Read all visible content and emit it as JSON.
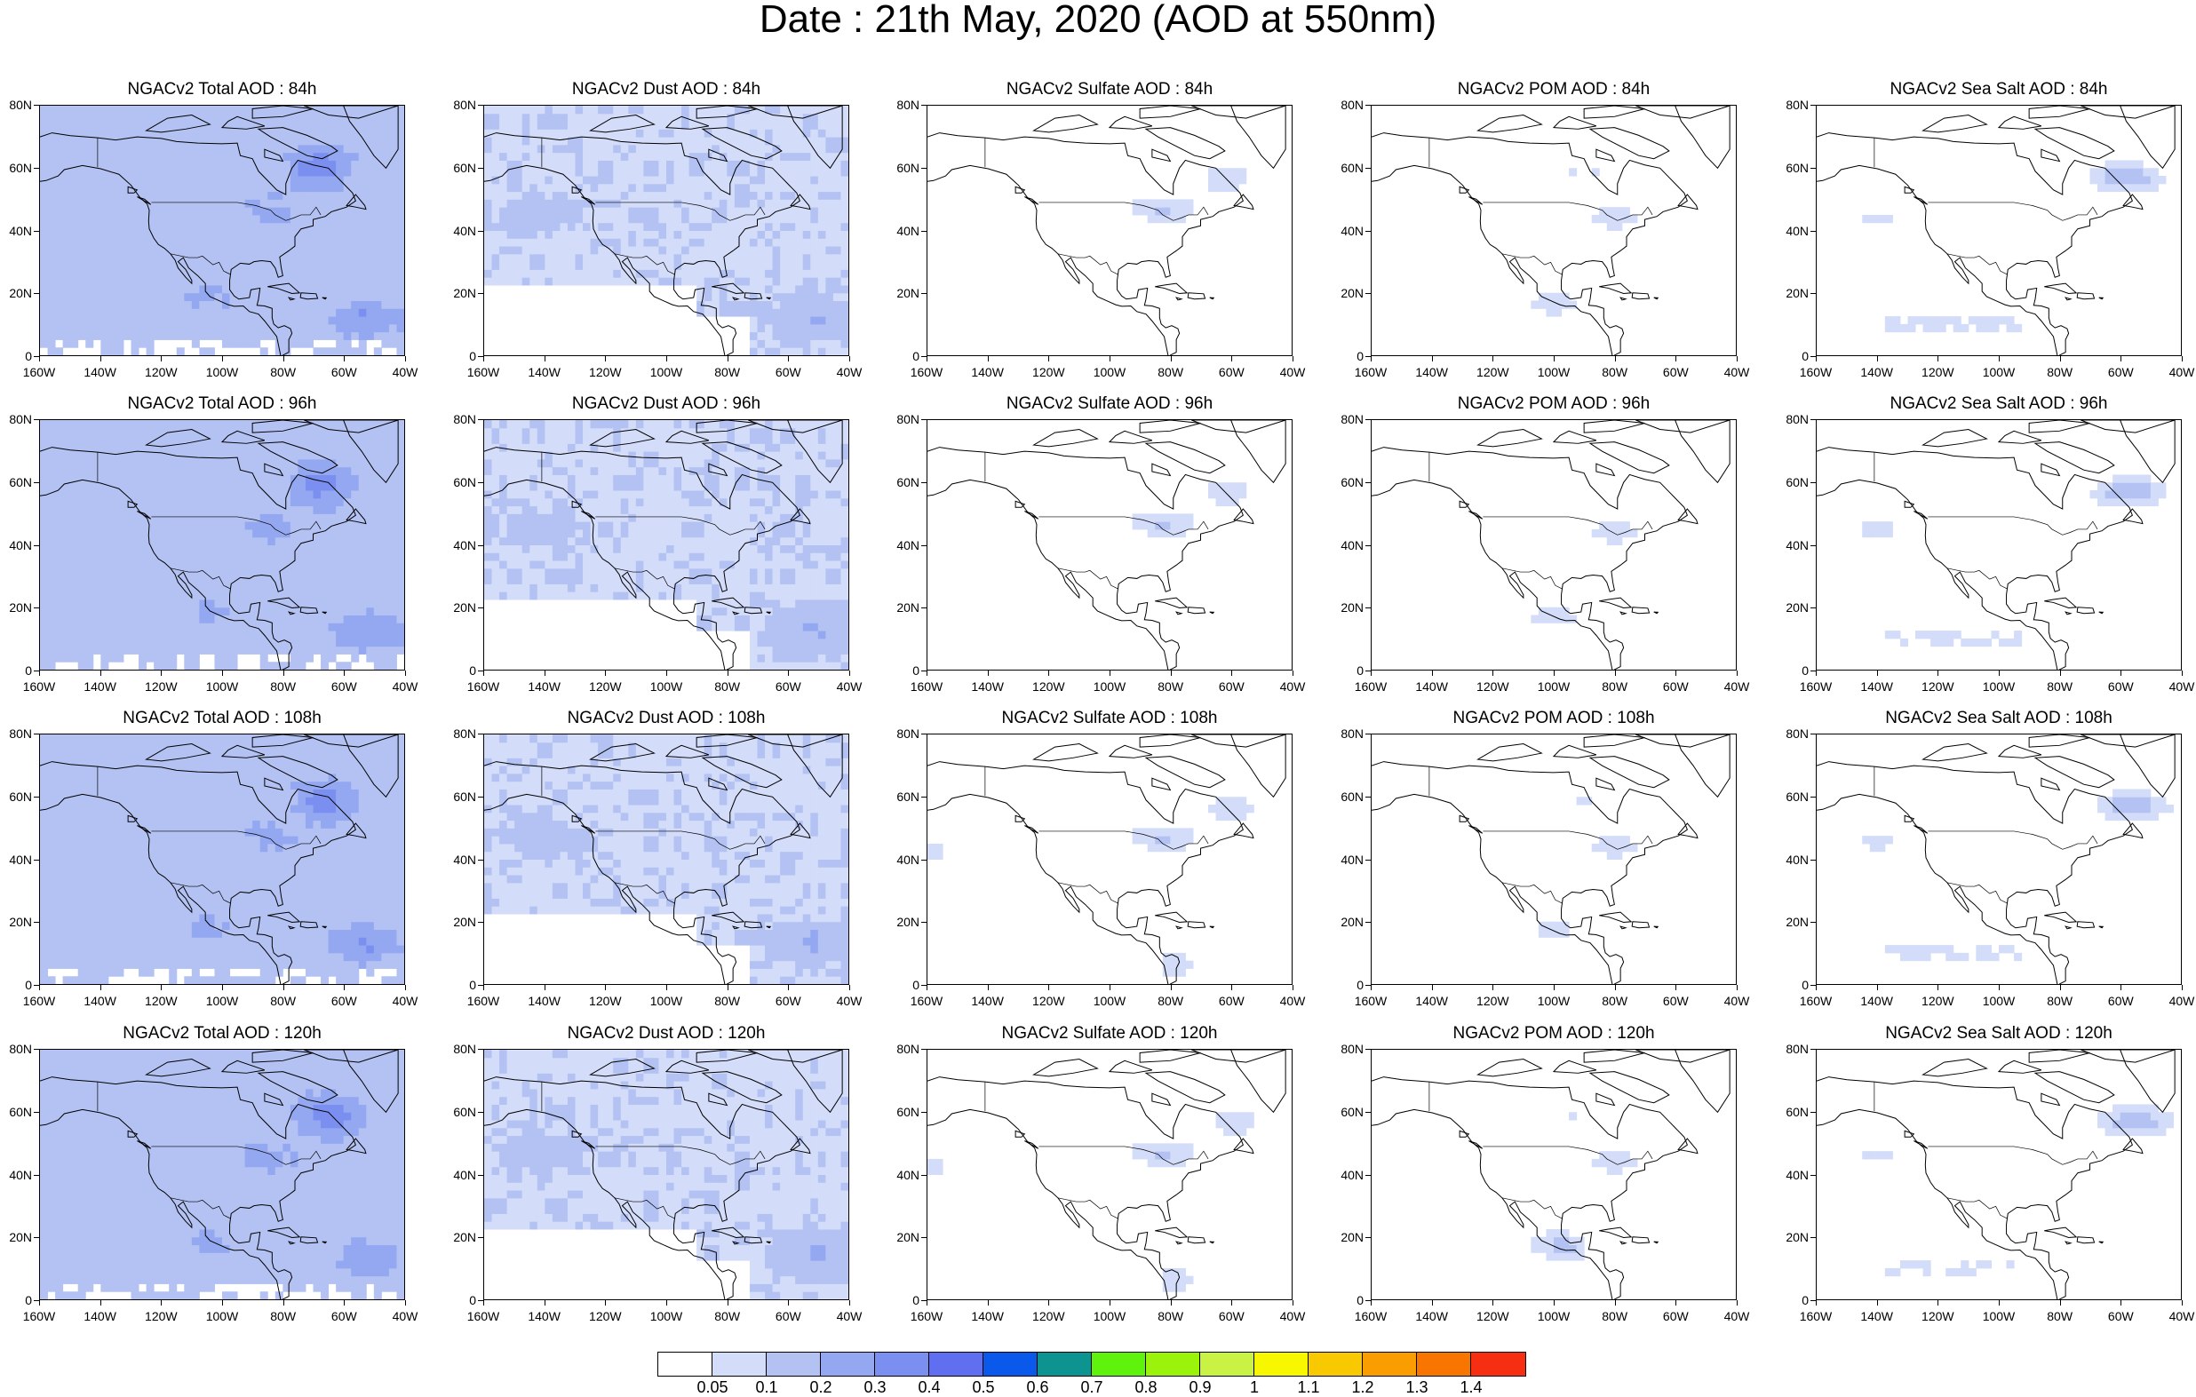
{
  "title": "Date : 21th May, 2020 (AOD at 550nm)",
  "columns": [
    {
      "species": "total",
      "titles": [
        "NGACv2 Total AOD : 84h",
        "NGACv2 Total AOD : 96h",
        "NGACv2 Total AOD : 108h",
        "NGACv2 Total AOD : 120h"
      ]
    },
    {
      "species": "dust",
      "titles": [
        "NGACv2 Dust AOD : 84h",
        "NGACv2 Dust AOD : 96h",
        "NGACv2 Dust AOD : 108h",
        "NGACv2 Dust AOD : 120h"
      ]
    },
    {
      "species": "sulfate",
      "titles": [
        "NGACv2 Sulfate AOD : 84h",
        "NGACv2 Sulfate AOD : 96h",
        "NGACv2 Sulfate AOD : 108h",
        "NGACv2 Sulfate AOD : 120h"
      ]
    },
    {
      "species": "pom",
      "titles": [
        "NGACv2 POM AOD : 84h",
        "NGACv2 POM AOD : 96h",
        "NGACv2 POM AOD : 108h",
        "NGACv2 POM AOD : 120h"
      ]
    },
    {
      "species": "seasalt",
      "titles": [
        "NGACv2 Sea Salt AOD : 84h",
        "NGACv2 Sea Salt AOD : 96h",
        "NGACv2 Sea Salt AOD : 108h",
        "NGACv2 Sea Salt  AOD : 120h"
      ]
    }
  ],
  "y_ticks": [
    "80N",
    "60N",
    "40N",
    "20N",
    "0"
  ],
  "x_ticks": [
    "160W",
    "140W",
    "120W",
    "100W",
    "80W",
    "60W",
    "40W"
  ],
  "colorbar": {
    "colors": [
      "#ffffff",
      "#d3dcf8",
      "#b3c2f3",
      "#94a8f1",
      "#7b8ff0",
      "#5f6ff0",
      "#0a59ea",
      "#0e9490",
      "#5ef20c",
      "#9bf30b",
      "#c9f245",
      "#f7f700",
      "#f8c800",
      "#f99d00",
      "#f87600",
      "#f72f12"
    ],
    "labels": [
      "0.05",
      "0.1",
      "0.2",
      "0.3",
      "0.4",
      "0.5",
      "0.6",
      "0.7",
      "0.8",
      "0.9",
      "1",
      "1.1",
      "1.2",
      "1.3",
      "1.4"
    ]
  }
}
